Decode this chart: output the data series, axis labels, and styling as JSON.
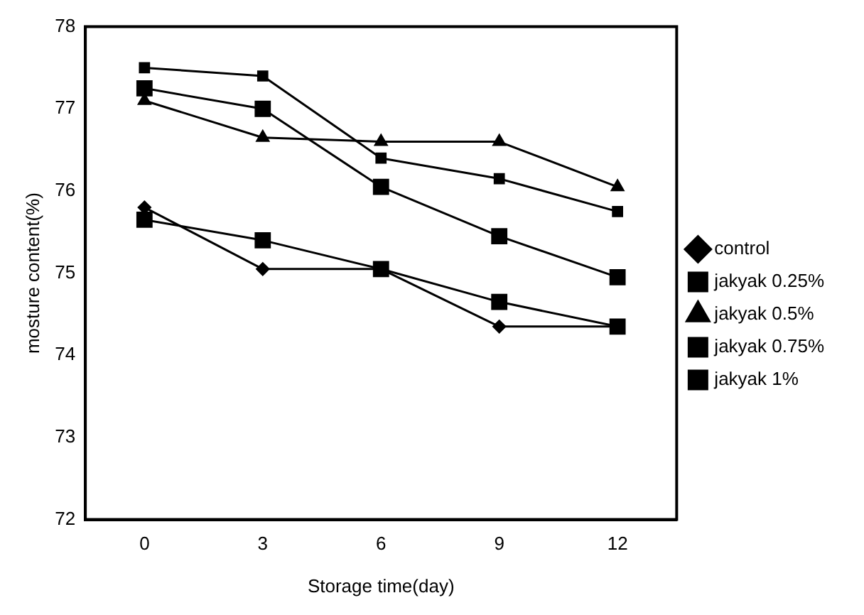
{
  "chart_data": {
    "type": "line",
    "xlabel": "Storage time(day)",
    "ylabel": "mosture content(%)",
    "categories": [
      "0",
      "3",
      "6",
      "9",
      "12"
    ],
    "series": [
      {
        "name": "control",
        "color": "#000000",
        "marker": "diamond",
        "values": [
          75.8,
          75.05,
          75.05,
          74.35,
          74.35
        ]
      },
      {
        "name": "jakyak 0.25%",
        "color": "#000000",
        "marker": "square",
        "values": [
          77.5,
          77.4,
          76.4,
          76.15,
          75.75
        ]
      },
      {
        "name": "jakyak 0.5%",
        "color": "#000000",
        "marker": "triangle",
        "values": [
          77.1,
          76.65,
          76.6,
          76.6,
          76.05
        ]
      },
      {
        "name": "jakyak 0.75%",
        "color": "#000000",
        "marker": "square",
        "values": [
          77.25,
          77.0,
          76.05,
          75.45,
          74.95
        ]
      },
      {
        "name": "jakyak 1%",
        "color": "#000000",
        "marker": "square",
        "values": [
          75.65,
          75.4,
          75.05,
          74.65,
          74.35
        ]
      }
    ],
    "ylim": [
      72,
      78
    ],
    "yticks": [
      72,
      73,
      74,
      75,
      76,
      77,
      78
    ],
    "grid": false,
    "legend": "right",
    "line_style": "solid"
  }
}
